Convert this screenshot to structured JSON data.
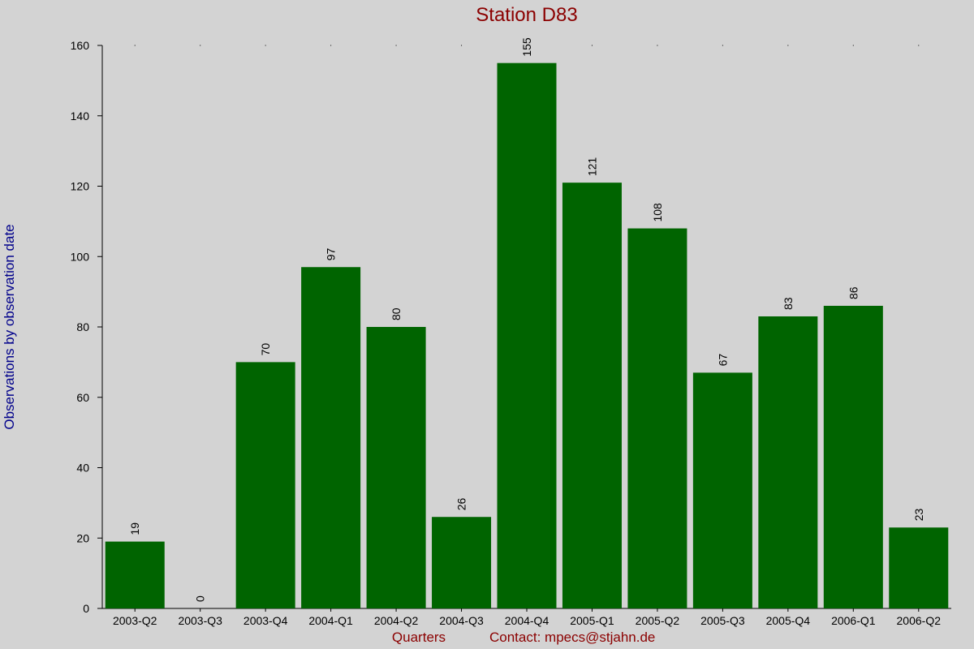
{
  "chart_data": {
    "type": "bar",
    "title": "Station D83",
    "xlabel": "Quarters",
    "ylabel": "Observations by observation date",
    "contact": "Contact: mpecs@stjahn.de",
    "categories": [
      "2003-Q2",
      "2003-Q3",
      "2003-Q4",
      "2004-Q1",
      "2004-Q2",
      "2004-Q3",
      "2004-Q4",
      "2005-Q1",
      "2005-Q2",
      "2005-Q3",
      "2005-Q4",
      "2006-Q1",
      "2006-Q2"
    ],
    "values": [
      19,
      0,
      70,
      97,
      80,
      26,
      155,
      121,
      108,
      67,
      83,
      86,
      23
    ],
    "ylim": [
      0,
      160
    ],
    "yticks": [
      0,
      20,
      40,
      60,
      80,
      100,
      120,
      140,
      160
    ],
    "grid": false,
    "legend": "none",
    "colors": {
      "bar": "#006400",
      "background": "#d3d3d3",
      "title": "#8b0000",
      "ylabel": "#00008b",
      "xlabel": "#8b0000"
    }
  }
}
